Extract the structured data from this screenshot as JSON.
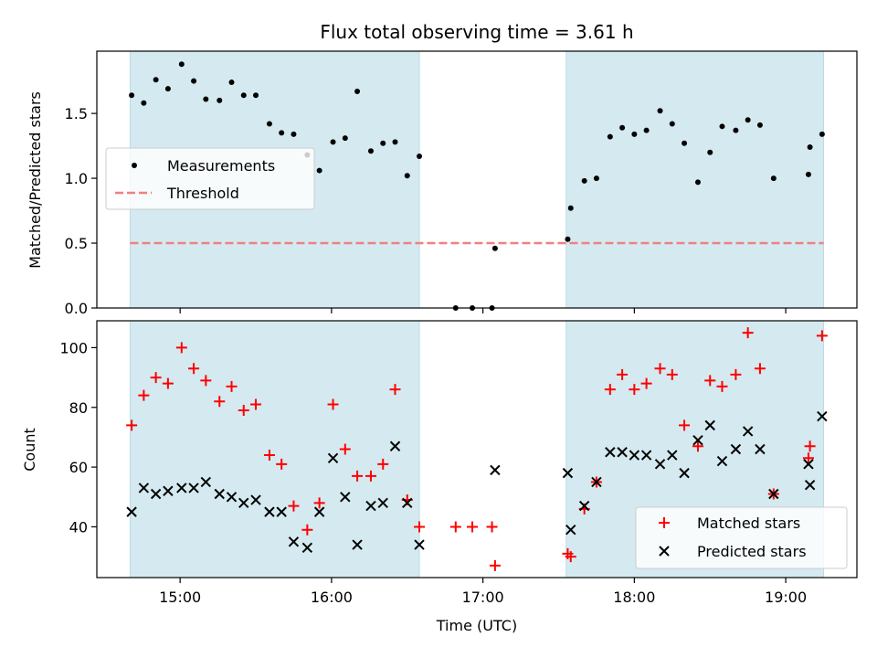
{
  "chart_data": {
    "title": "Flux total observing time = 3.61 h",
    "xlabel": "Time (UTC)",
    "x_ticks": [
      "15:00",
      "16:00",
      "17:00",
      "18:00",
      "19:00"
    ],
    "x_tick_hours": [
      15,
      16,
      17,
      18,
      19
    ],
    "xlim_hours": [
      14.45,
      19.47
    ],
    "shaded_intervals_hours": [
      [
        14.67,
        16.58
      ],
      [
        17.55,
        19.25
      ]
    ],
    "shade_color": "#d4eaf0",
    "panels": [
      {
        "type": "scatter",
        "ylabel": "Matched/Predicted stars",
        "ylim": [
          0,
          1.98
        ],
        "y_ticks": [
          "0.0",
          "0.5",
          "1.0",
          "1.5"
        ],
        "y_tick_values": [
          0,
          0.5,
          1.0,
          1.5
        ],
        "threshold": 0.5,
        "threshold_color": "#f08080",
        "legend": [
          "Measurements",
          "Threshold"
        ],
        "series": [
          {
            "name": "Measurements",
            "color": "#000000",
            "marker": "dot",
            "x_hours": [
              14.68,
              14.76,
              14.84,
              14.92,
              15.01,
              15.09,
              15.17,
              15.26,
              15.34,
              15.42,
              15.5,
              15.59,
              15.67,
              15.75,
              15.84,
              15.92,
              16.01,
              16.09,
              16.17,
              16.26,
              16.34,
              16.42,
              16.5,
              16.58,
              16.82,
              16.93,
              17.06,
              17.08,
              17.56,
              17.58,
              17.67,
              17.75,
              17.84,
              17.92,
              18.0,
              18.08,
              18.17,
              18.25,
              18.33,
              18.42,
              18.5,
              18.58,
              18.67,
              18.75,
              18.83,
              18.92,
              19.15,
              19.16,
              19.24
            ],
            "values": [
              1.64,
              1.58,
              1.76,
              1.69,
              1.88,
              1.75,
              1.61,
              1.6,
              1.74,
              1.64,
              1.64,
              1.42,
              1.35,
              1.34,
              1.18,
              1.06,
              1.28,
              1.31,
              1.67,
              1.21,
              1.27,
              1.28,
              1.02,
              1.17,
              0.0,
              0.0,
              0.0,
              0.46,
              0.53,
              0.77,
              0.98,
              1.0,
              1.32,
              1.39,
              1.34,
              1.37,
              1.52,
              1.42,
              1.27,
              0.97,
              1.2,
              1.4,
              1.37,
              1.45,
              1.41,
              1.0,
              1.03,
              1.24,
              1.34
            ]
          }
        ]
      },
      {
        "type": "scatter",
        "ylabel": "Count",
        "ylim": [
          23,
          109
        ],
        "y_ticks": [
          "40",
          "60",
          "80",
          "100"
        ],
        "y_tick_values": [
          40,
          60,
          80,
          100
        ],
        "legend": [
          "Matched stars",
          "Predicted stars"
        ],
        "series": [
          {
            "name": "Matched stars",
            "color": "#ff0000",
            "marker": "plus",
            "x_hours": [
              14.68,
              14.76,
              14.84,
              14.92,
              15.01,
              15.09,
              15.17,
              15.26,
              15.34,
              15.42,
              15.5,
              15.59,
              15.67,
              15.75,
              15.84,
              15.92,
              16.01,
              16.09,
              16.17,
              16.26,
              16.34,
              16.42,
              16.5,
              16.58,
              16.82,
              16.93,
              17.06,
              17.08,
              17.56,
              17.58,
              17.67,
              17.75,
              17.84,
              17.92,
              18.0,
              18.08,
              18.17,
              18.25,
              18.33,
              18.42,
              18.5,
              18.58,
              18.67,
              18.75,
              18.83,
              18.92,
              19.15,
              19.16,
              19.24
            ],
            "values": [
              74,
              84,
              90,
              88,
              100,
              93,
              89,
              82,
              87,
              79,
              81,
              64,
              61,
              47,
              39,
              48,
              81,
              66,
              57,
              57,
              61,
              86,
              49,
              40,
              40,
              40,
              40,
              27,
              31,
              30,
              46,
              55,
              86,
              91,
              86,
              88,
              93,
              91,
              74,
              67,
              89,
              87,
              91,
              105,
              93,
              51,
              63,
              67,
              104
            ]
          },
          {
            "name": "Predicted stars",
            "color": "#000000",
            "marker": "x",
            "x_hours": [
              14.68,
              14.76,
              14.84,
              14.92,
              15.01,
              15.09,
              15.17,
              15.26,
              15.34,
              15.42,
              15.5,
              15.59,
              15.67,
              15.75,
              15.84,
              15.92,
              16.01,
              16.09,
              16.17,
              16.26,
              16.34,
              16.42,
              16.5,
              16.58,
              17.08,
              17.56,
              17.58,
              17.67,
              17.75,
              17.84,
              17.92,
              18.0,
              18.08,
              18.17,
              18.25,
              18.33,
              18.42,
              18.5,
              18.58,
              18.67,
              18.75,
              18.83,
              18.92,
              19.15,
              19.16,
              19.24
            ],
            "values": [
              45,
              53,
              51,
              52,
              53,
              53,
              55,
              51,
              50,
              48,
              49,
              45,
              45,
              35,
              33,
              45,
              63,
              50,
              34,
              47,
              48,
              67,
              48,
              34,
              59,
              58,
              39,
              47,
              55,
              65,
              65,
              64,
              64,
              61,
              64,
              58,
              69,
              74,
              62,
              66,
              72,
              66,
              51,
              61,
              54,
              77
            ]
          }
        ]
      }
    ]
  }
}
